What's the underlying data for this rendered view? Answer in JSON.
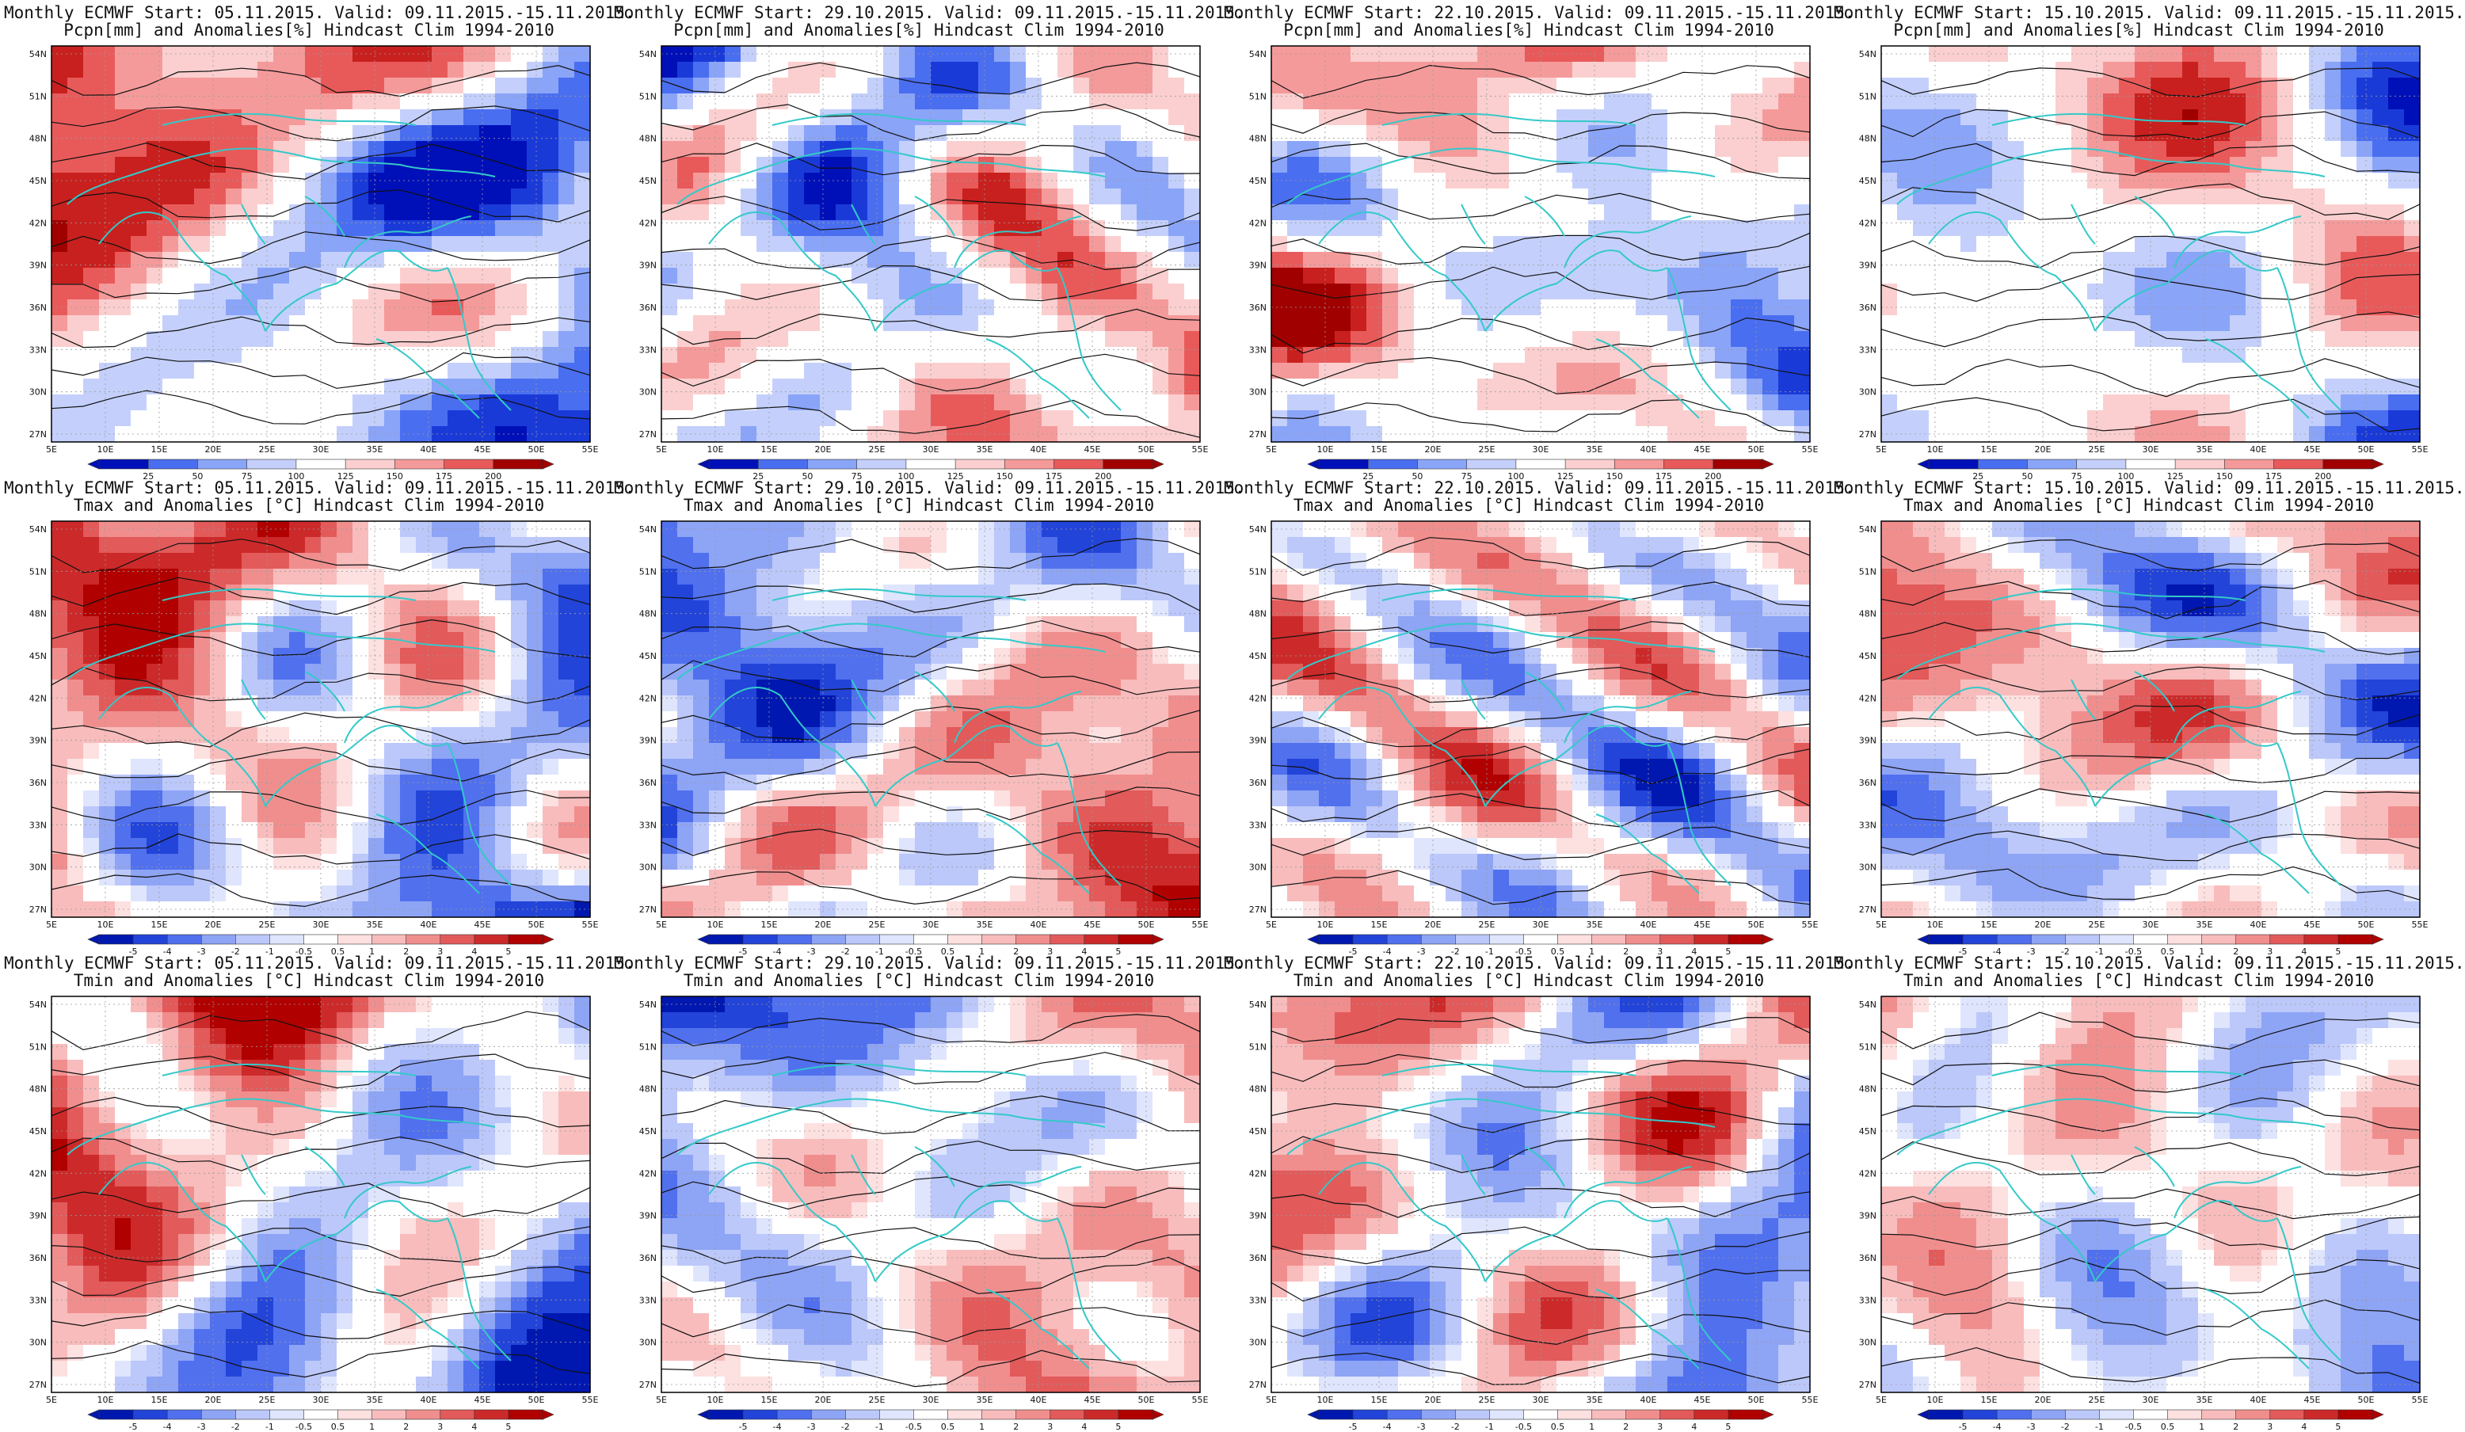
{
  "rows": [
    {
      "variable_line": "Pcpn[mm] and Anomalies[%] Hindcast Clim 1994-2010",
      "mode": "precip",
      "colorbar_ticks": [
        "25",
        "50",
        "75",
        "100",
        "125",
        "150",
        "175",
        "200"
      ]
    },
    {
      "variable_line": "Tmax and Anomalies [°C] Hindcast Clim 1994-2010",
      "mode": "temp",
      "colorbar_ticks": [
        "-5",
        "-4",
        "-3",
        "-2",
        "-1",
        "-0.5",
        "0.5",
        "1",
        "2",
        "3",
        "4",
        "5"
      ]
    },
    {
      "variable_line": "Tmin and Anomalies [°C] Hindcast Clim 1994-2010",
      "mode": "temp",
      "colorbar_ticks": [
        "-5",
        "-4",
        "-3",
        "-2",
        "-1",
        "-0.5",
        "0.5",
        "1",
        "2",
        "3",
        "4",
        "5"
      ]
    }
  ],
  "columns": [
    {
      "header": "Monthly ECMWF Start: 05.11.2015. Valid: 09.11.2015.-15.11.2015."
    },
    {
      "header": "Monthly ECMWF Start: 29.10.2015. Valid: 09.11.2015.-15.11.2015."
    },
    {
      "header": "Monthly ECMWF Start: 22.10.2015. Valid: 09.11.2015.-15.11.2015."
    },
    {
      "header": "Monthly ECMWF Start: 15.10.2015. Valid: 09.11.2015.-15.11.2015."
    }
  ],
  "lat_labels": [
    "54N",
    "51N",
    "48N",
    "45N",
    "42N",
    "39N",
    "36N",
    "33N",
    "30N",
    "27N"
  ],
  "lon_labels": [
    "5E",
    "10E",
    "15E",
    "20E",
    "25E",
    "30E",
    "35E",
    "40E",
    "45E",
    "50E",
    "55E"
  ],
  "anomaly_strength": [
    [
      0.85,
      -0.5,
      0.25,
      0.2
    ],
    [
      0.8,
      -0.75,
      0.22,
      0.18
    ],
    [
      0.8,
      -0.55,
      0.3,
      0.22
    ]
  ],
  "colors": {
    "precip_low": [
      "#0010b8",
      "#1a3ad8",
      "#4a6ef0",
      "#8aa4f8",
      "#c4d0fb",
      "#ffffff"
    ],
    "precip_high": [
      "#ffffff",
      "#fbcfcf",
      "#f59a9a",
      "#e85a5a",
      "#c8201e",
      "#a00000"
    ],
    "temp_cold": [
      "#0018b0",
      "#2244d8",
      "#5070ee",
      "#8ea4f5",
      "#bcc8fa",
      "#dfe5fd",
      "#ffffff"
    ],
    "temp_warm": [
      "#ffffff",
      "#fde0e0",
      "#f8bcbc",
      "#f08e8e",
      "#e25a5a",
      "#cc2a2a",
      "#b00000"
    ],
    "coast": "#34c9c9",
    "contour": "#111111"
  }
}
